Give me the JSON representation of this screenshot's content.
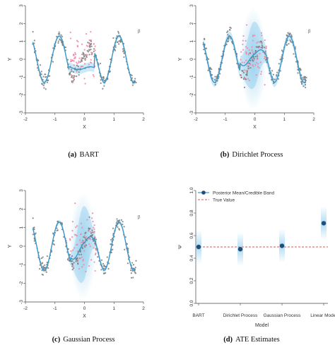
{
  "colors": {
    "fit_line": "#3b97c8",
    "band": "#74c1e8",
    "treated_points": "#f08aa6",
    "control_points": "#7a7a7a",
    "estimate_point": "#1f4e79",
    "true_value_line": "#e25555"
  },
  "curve_panels": [
    {
      "id": "bart",
      "caption_letter": "(a)",
      "caption_text": "BART",
      "corner_tag": "β",
      "xlabel": "X",
      "ylabel": "Y",
      "xticks": [
        "-2",
        "-1",
        "0",
        "1",
        "2"
      ],
      "yticks": [
        "-3",
        "-2",
        "-1",
        "0",
        "1",
        "2",
        "3"
      ]
    },
    {
      "id": "dp",
      "caption_letter": "(b)",
      "caption_text": "Dirichlet Process",
      "corner_tag": "β",
      "xlabel": "X",
      "ylabel": "Y",
      "xticks": [
        "-2",
        "-1",
        "0",
        "1",
        "2"
      ],
      "yticks": [
        "-3",
        "-2",
        "-1",
        "0",
        "1",
        "2",
        "3"
      ]
    },
    {
      "id": "gp",
      "caption_letter": "(c)",
      "caption_text": "Gaussian Process",
      "corner_tag": "β",
      "xlabel": "X",
      "ylabel": "Y",
      "xticks": [
        "-2",
        "-1",
        "0",
        "1",
        "2"
      ],
      "yticks": [
        "-3",
        "-2",
        "-1",
        "0",
        "1",
        "2",
        "3"
      ]
    }
  ],
  "ate_panel": {
    "caption_letter": "(d)",
    "caption_text": "ATE Estimates",
    "xlabel": "Model",
    "ylabel": "Ψ",
    "yticks": [
      "0.0",
      "0.2",
      "0.4",
      "0.6",
      "0.8",
      "1.0"
    ],
    "legend_mean": "Posterior Mean/Credible Band",
    "legend_true": "True Value"
  },
  "chart_data": [
    {
      "type": "scatter",
      "title": "",
      "xlabel": "X",
      "ylabel": "Y",
      "xlim": [
        -2,
        2
      ],
      "ylim": [
        -3,
        3
      ],
      "series": [],
      "fit": {
        "x": [
          -1.7,
          -1.4,
          -1.2,
          -1.0,
          -0.8,
          -0.6,
          -0.4,
          0.0,
          0.3,
          0.5,
          0.8,
          1.0,
          1.2,
          1.5,
          1.7
        ],
        "y": [
          0.3,
          -0.9,
          1.4,
          -1.0,
          1.0,
          -1.0,
          -0.5,
          -0.5,
          -0.45,
          0.9,
          -0.9,
          1.2,
          1.5,
          -1.3,
          0.3
        ]
      }
    },
    {
      "type": "scatter",
      "title": "",
      "xlabel": "X",
      "ylabel": "Y",
      "xlim": [
        -2,
        2
      ],
      "ylim": [
        -3,
        3
      ],
      "series": [],
      "fit": {
        "x": [
          -1.7,
          -1.4,
          -1.2,
          -1.0,
          -0.8,
          -0.6,
          -0.4,
          -0.2,
          0.0,
          0.2,
          0.4,
          0.6,
          0.8,
          1.0,
          1.2,
          1.4,
          1.7
        ],
        "y": [
          0.3,
          -0.9,
          1.3,
          -1.0,
          1.1,
          -0.9,
          0.8,
          -0.6,
          0.2,
          -0.6,
          0.8,
          -0.8,
          1.0,
          -1.0,
          1.3,
          -1.0,
          0.3
        ]
      }
    },
    {
      "type": "scatter",
      "title": "",
      "xlabel": "X",
      "ylabel": "Y",
      "xlim": [
        -2,
        2
      ],
      "ylim": [
        -3,
        3
      ],
      "series": [],
      "fit": {
        "x": [
          -1.7,
          -1.4,
          -1.2,
          -1.0,
          -0.8,
          -0.6,
          -0.4,
          -0.2,
          0.0,
          0.2,
          0.4,
          0.6,
          0.8,
          1.0,
          1.2,
          1.4,
          1.7
        ],
        "y": [
          0.3,
          -0.9,
          1.4,
          -1.0,
          1.2,
          -1.0,
          0.9,
          -0.9,
          0.0,
          -0.9,
          1.0,
          -1.0,
          1.2,
          -1.0,
          1.4,
          -1.0,
          0.3
        ]
      }
    },
    {
      "type": "scatter",
      "title": "",
      "xlabel": "Model",
      "ylabel": "Ψ",
      "categories": [
        "BART",
        "Dirichlet Process",
        "Gaussian Process",
        "Linear Model"
      ],
      "ylim": [
        0.0,
        1.0
      ],
      "series": [
        {
          "name": "Posterior Mean/Credible Band",
          "values": [
            0.5,
            0.48,
            0.51,
            0.71
          ]
        },
        {
          "name": "True Value",
          "values": [
            0.5,
            0.5,
            0.5,
            0.5
          ]
        }
      ]
    }
  ]
}
